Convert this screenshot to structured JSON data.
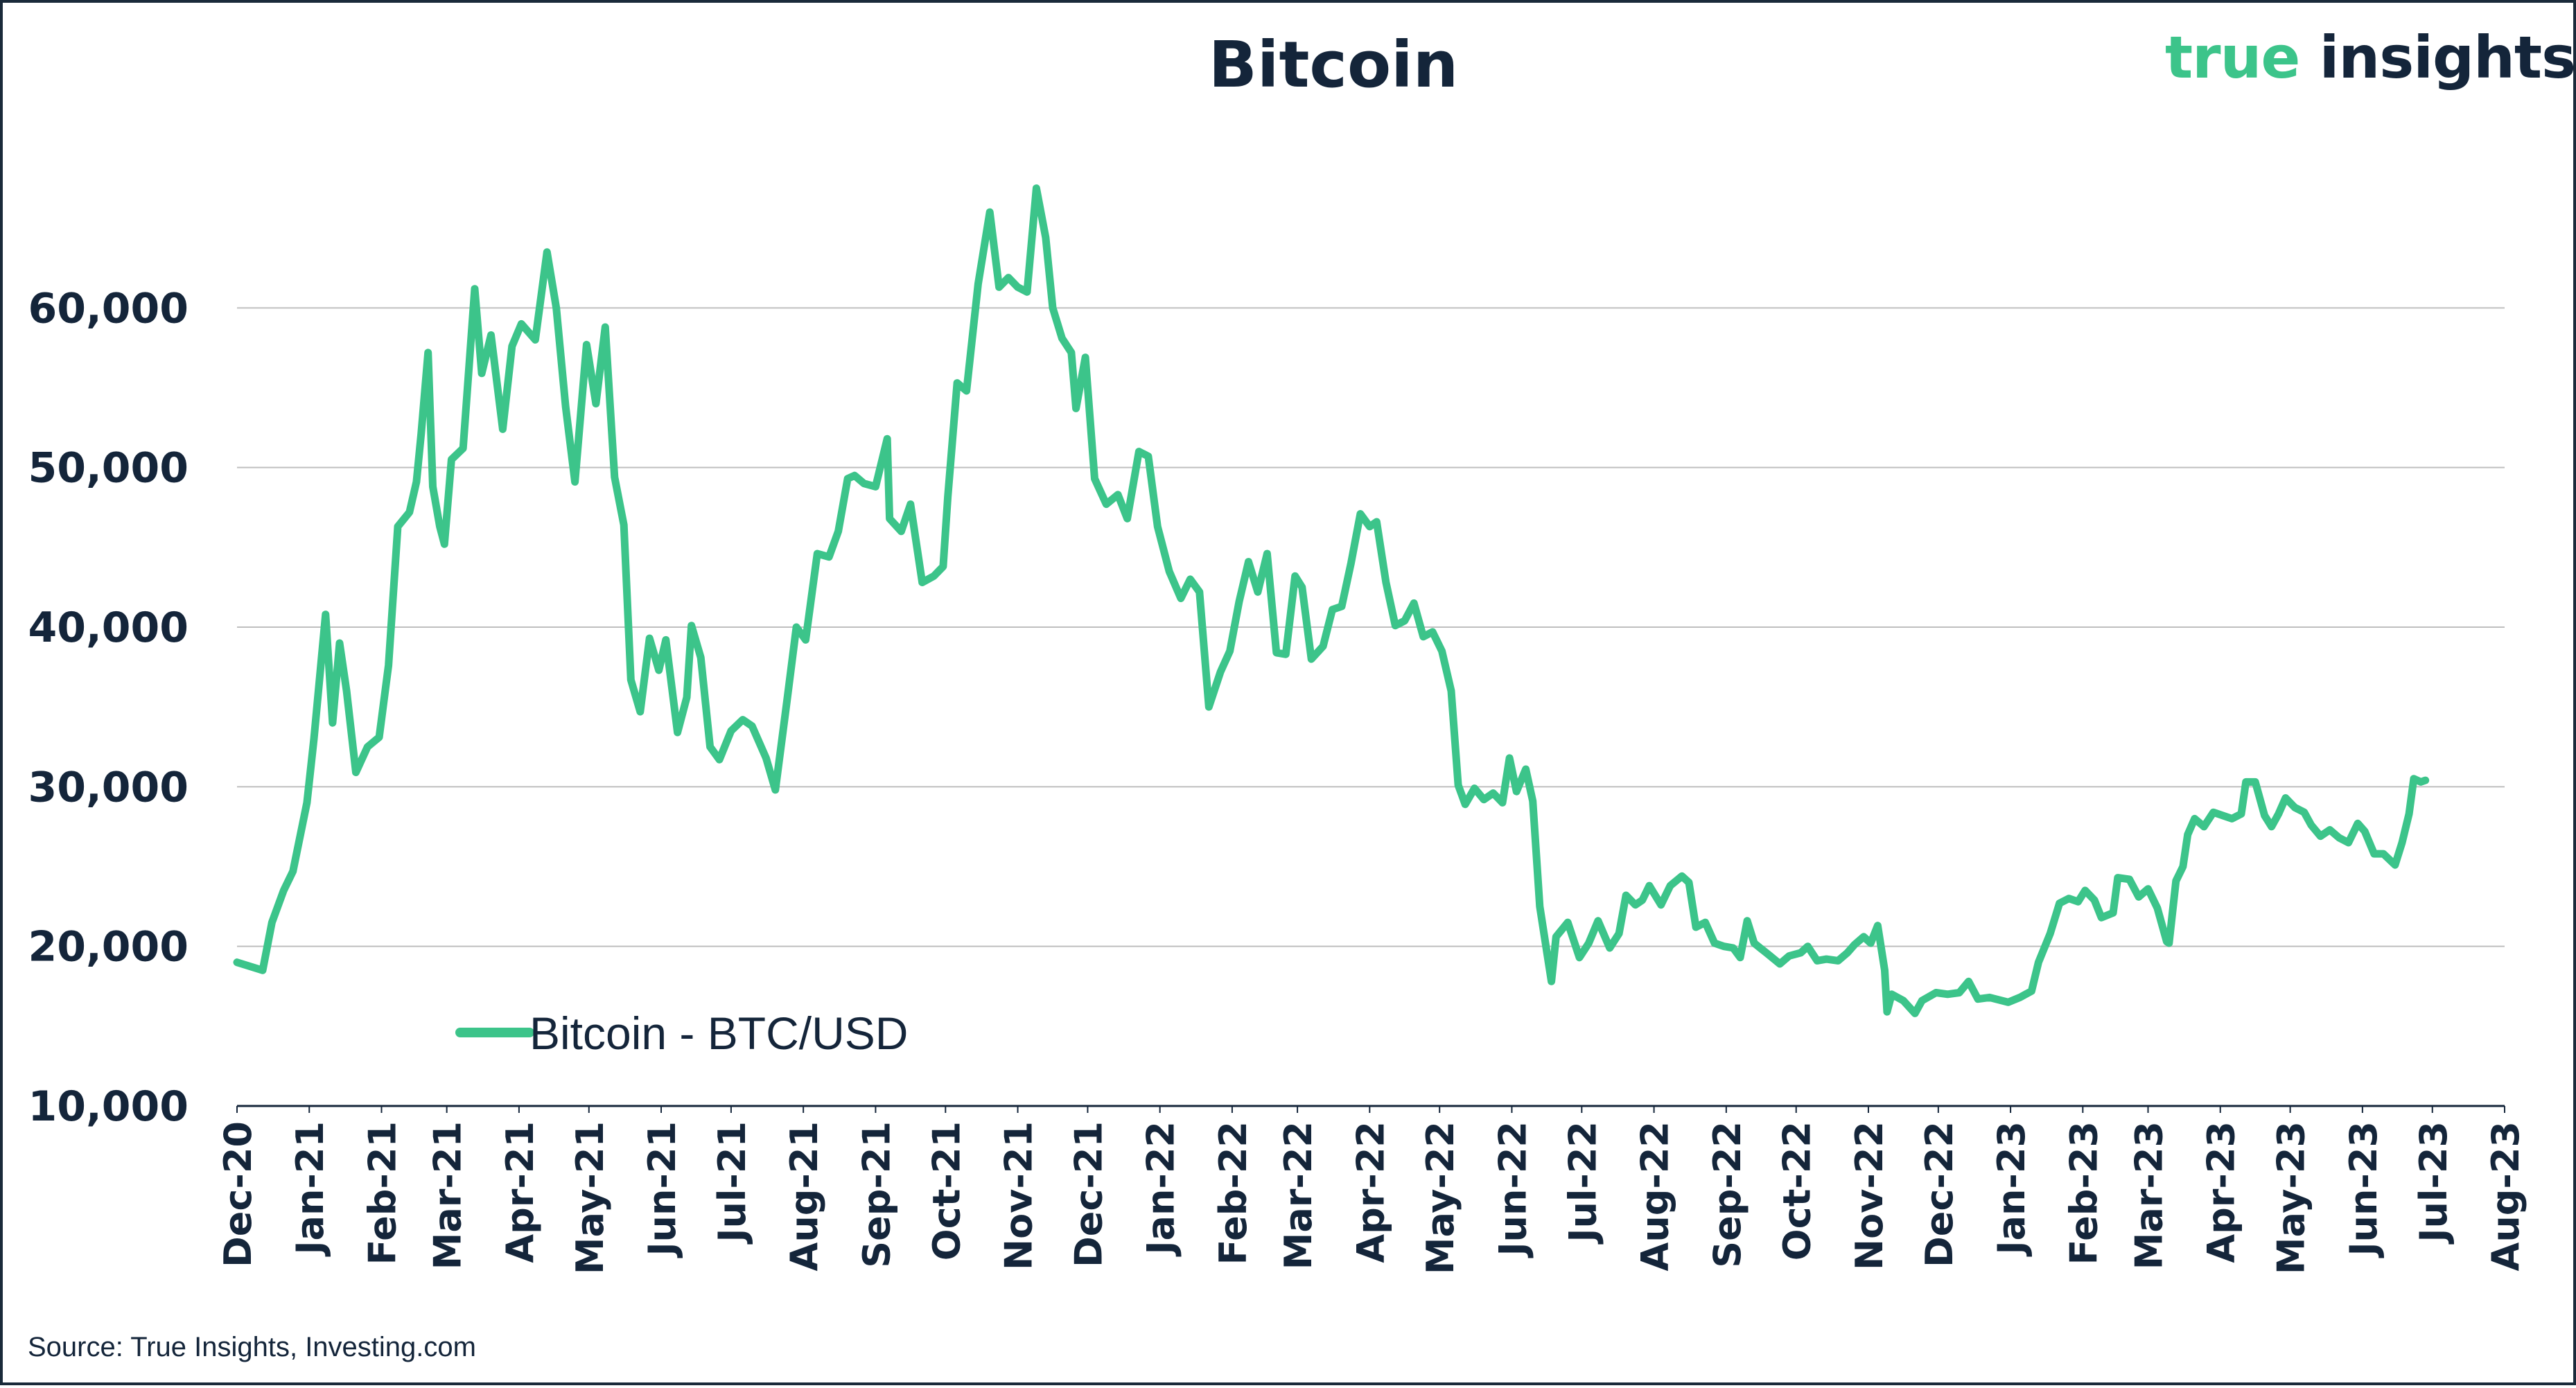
{
  "header": {
    "title": "Bitcoin",
    "brand_part1": "true",
    "brand_part2": "insights"
  },
  "footer": {
    "source": "Source: True Insights, Investing.com"
  },
  "colors": {
    "series": "#3cc48a",
    "text": "#14253a",
    "grid": "#bfbfbf",
    "axis": "#14253a"
  },
  "chart_data": {
    "type": "line",
    "title": "Bitcoin",
    "xlabel": "",
    "ylabel": "",
    "ylim": [
      10000,
      70000
    ],
    "yticks": [
      10000,
      20000,
      30000,
      40000,
      50000,
      60000
    ],
    "ytick_labels": [
      "10,000",
      "20,000",
      "30,000",
      "40,000",
      "50,000",
      "60,000"
    ],
    "x_range": [
      "2020-12-01",
      "2023-08-01"
    ],
    "xtick_labels": [
      "Dec-20",
      "Jan-21",
      "Feb-21",
      "Mar-21",
      "Apr-21",
      "May-21",
      "Jun-21",
      "Jul-21",
      "Aug-21",
      "Sep-21",
      "Oct-21",
      "Nov-21",
      "Dec-21",
      "Jan-22",
      "Feb-22",
      "Mar-22",
      "Apr-22",
      "May-22",
      "Jun-22",
      "Jul-22",
      "Aug-22",
      "Sep-22",
      "Oct-22",
      "Nov-22",
      "Dec-22",
      "Jan-23",
      "Feb-23",
      "Mar-23",
      "Apr-23",
      "May-23",
      "Jun-23",
      "Jul-23",
      "Aug-23"
    ],
    "grid": true,
    "legend_position": "bottom-left",
    "series": [
      {
        "name": "Bitcoin - BTC/USD",
        "points": [
          [
            "2020-12-01",
            19000
          ],
          [
            "2020-12-12",
            18500
          ],
          [
            "2020-12-16",
            21500
          ],
          [
            "2020-12-21",
            23500
          ],
          [
            "2020-12-25",
            24700
          ],
          [
            "2020-12-31",
            29000
          ],
          [
            "2021-01-03",
            33000
          ],
          [
            "2021-01-08",
            40800
          ],
          [
            "2021-01-11",
            34000
          ],
          [
            "2021-01-14",
            39000
          ],
          [
            "2021-01-17",
            36000
          ],
          [
            "2021-01-21",
            30900
          ],
          [
            "2021-01-26",
            32500
          ],
          [
            "2021-01-31",
            33100
          ],
          [
            "2021-02-04",
            37600
          ],
          [
            "2021-02-08",
            46300
          ],
          [
            "2021-02-13",
            47200
          ],
          [
            "2021-02-16",
            49100
          ],
          [
            "2021-02-18",
            52100
          ],
          [
            "2021-02-21",
            57200
          ],
          [
            "2021-02-23",
            48800
          ],
          [
            "2021-02-26",
            46300
          ],
          [
            "2021-02-28",
            45200
          ],
          [
            "2021-03-03",
            50500
          ],
          [
            "2021-03-08",
            51200
          ],
          [
            "2021-03-13",
            61200
          ],
          [
            "2021-03-16",
            55900
          ],
          [
            "2021-03-20",
            58300
          ],
          [
            "2021-03-25",
            52400
          ],
          [
            "2021-03-29",
            57600
          ],
          [
            "2021-04-02",
            59000
          ],
          [
            "2021-04-08",
            58000
          ],
          [
            "2021-04-13",
            63500
          ],
          [
            "2021-04-17",
            60000
          ],
          [
            "2021-04-21",
            53800
          ],
          [
            "2021-04-25",
            49100
          ],
          [
            "2021-04-30",
            57700
          ],
          [
            "2021-05-04",
            54000
          ],
          [
            "2021-05-08",
            58800
          ],
          [
            "2021-05-12",
            49400
          ],
          [
            "2021-05-16",
            46400
          ],
          [
            "2021-05-19",
            36700
          ],
          [
            "2021-05-23",
            34700
          ],
          [
            "2021-05-27",
            39300
          ],
          [
            "2021-05-31",
            37300
          ],
          [
            "2021-06-03",
            39200
          ],
          [
            "2021-06-08",
            33400
          ],
          [
            "2021-06-12",
            35600
          ],
          [
            "2021-06-14",
            40100
          ],
          [
            "2021-06-18",
            38100
          ],
          [
            "2021-06-22",
            32500
          ],
          [
            "2021-06-26",
            31700
          ],
          [
            "2021-07-01",
            33500
          ],
          [
            "2021-07-06",
            34200
          ],
          [
            "2021-07-10",
            33800
          ],
          [
            "2021-07-16",
            31800
          ],
          [
            "2021-07-20",
            29800
          ],
          [
            "2021-07-25",
            35400
          ],
          [
            "2021-07-29",
            40000
          ],
          [
            "2021-08-02",
            39200
          ],
          [
            "2021-08-07",
            44600
          ],
          [
            "2021-08-12",
            44400
          ],
          [
            "2021-08-16",
            46000
          ],
          [
            "2021-08-20",
            49300
          ],
          [
            "2021-08-23",
            49500
          ],
          [
            "2021-08-27",
            49000
          ],
          [
            "2021-09-01",
            48800
          ],
          [
            "2021-09-06",
            51800
          ],
          [
            "2021-09-07",
            46800
          ],
          [
            "2021-09-12",
            46000
          ],
          [
            "2021-09-16",
            47700
          ],
          [
            "2021-09-21",
            42800
          ],
          [
            "2021-09-26",
            43200
          ],
          [
            "2021-09-30",
            43800
          ],
          [
            "2021-10-02",
            48200
          ],
          [
            "2021-10-06",
            55300
          ],
          [
            "2021-10-10",
            54800
          ],
          [
            "2021-10-15",
            61500
          ],
          [
            "2021-10-20",
            66000
          ],
          [
            "2021-10-24",
            61300
          ],
          [
            "2021-10-28",
            61900
          ],
          [
            "2021-11-01",
            61300
          ],
          [
            "2021-11-05",
            61000
          ],
          [
            "2021-11-09",
            67500
          ],
          [
            "2021-11-13",
            64400
          ],
          [
            "2021-11-16",
            60000
          ],
          [
            "2021-11-20",
            58100
          ],
          [
            "2021-11-24",
            57200
          ],
          [
            "2021-11-26",
            53700
          ],
          [
            "2021-11-30",
            56900
          ],
          [
            "2021-12-04",
            49300
          ],
          [
            "2021-12-09",
            47700
          ],
          [
            "2021-12-14",
            48300
          ],
          [
            "2021-12-18",
            46800
          ],
          [
            "2021-12-23",
            51000
          ],
          [
            "2021-12-27",
            50700
          ],
          [
            "2021-12-31",
            46300
          ],
          [
            "2022-01-05",
            43500
          ],
          [
            "2022-01-10",
            41800
          ],
          [
            "2022-01-14",
            43000
          ],
          [
            "2022-01-18",
            42200
          ],
          [
            "2022-01-22",
            35000
          ],
          [
            "2022-01-27",
            37200
          ],
          [
            "2022-01-31",
            38500
          ],
          [
            "2022-02-04",
            41600
          ],
          [
            "2022-02-08",
            44100
          ],
          [
            "2022-02-12",
            42200
          ],
          [
            "2022-02-16",
            44600
          ],
          [
            "2022-02-20",
            38400
          ],
          [
            "2022-02-24",
            38300
          ],
          [
            "2022-02-28",
            43200
          ],
          [
            "2022-03-03",
            42500
          ],
          [
            "2022-03-07",
            38000
          ],
          [
            "2022-03-12",
            38800
          ],
          [
            "2022-03-16",
            41100
          ],
          [
            "2022-03-20",
            41300
          ],
          [
            "2022-03-24",
            44000
          ],
          [
            "2022-03-28",
            47100
          ],
          [
            "2022-04-01",
            46300
          ],
          [
            "2022-04-04",
            46600
          ],
          [
            "2022-04-08",
            42800
          ],
          [
            "2022-04-12",
            40100
          ],
          [
            "2022-04-16",
            40400
          ],
          [
            "2022-04-20",
            41500
          ],
          [
            "2022-04-24",
            39400
          ],
          [
            "2022-04-28",
            39700
          ],
          [
            "2022-05-02",
            38500
          ],
          [
            "2022-05-06",
            36000
          ],
          [
            "2022-05-09",
            30100
          ],
          [
            "2022-05-12",
            28900
          ],
          [
            "2022-05-16",
            29900
          ],
          [
            "2022-05-20",
            29200
          ],
          [
            "2022-05-24",
            29600
          ],
          [
            "2022-05-28",
            29000
          ],
          [
            "2022-05-31",
            31800
          ],
          [
            "2022-06-03",
            29700
          ],
          [
            "2022-06-07",
            31100
          ],
          [
            "2022-06-10",
            29100
          ],
          [
            "2022-06-13",
            22500
          ],
          [
            "2022-06-18",
            17800
          ],
          [
            "2022-06-20",
            20600
          ],
          [
            "2022-06-25",
            21500
          ],
          [
            "2022-06-30",
            19300
          ],
          [
            "2022-07-04",
            20200
          ],
          [
            "2022-07-08",
            21600
          ],
          [
            "2022-07-13",
            19900
          ],
          [
            "2022-07-17",
            20800
          ],
          [
            "2022-07-20",
            23200
          ],
          [
            "2022-07-24",
            22600
          ],
          [
            "2022-07-27",
            22900
          ],
          [
            "2022-07-30",
            23800
          ],
          [
            "2022-08-04",
            22600
          ],
          [
            "2022-08-08",
            23800
          ],
          [
            "2022-08-13",
            24400
          ],
          [
            "2022-08-16",
            24000
          ],
          [
            "2022-08-19",
            21200
          ],
          [
            "2022-08-23",
            21500
          ],
          [
            "2022-08-27",
            20200
          ],
          [
            "2022-08-31",
            20000
          ],
          [
            "2022-09-04",
            19900
          ],
          [
            "2022-09-07",
            19300
          ],
          [
            "2022-09-10",
            21600
          ],
          [
            "2022-09-13",
            20200
          ],
          [
            "2022-09-19",
            19500
          ],
          [
            "2022-09-24",
            18900
          ],
          [
            "2022-09-28",
            19400
          ],
          [
            "2022-10-03",
            19600
          ],
          [
            "2022-10-06",
            20000
          ],
          [
            "2022-10-10",
            19100
          ],
          [
            "2022-10-14",
            19200
          ],
          [
            "2022-10-19",
            19100
          ],
          [
            "2022-10-23",
            19600
          ],
          [
            "2022-10-26",
            20100
          ],
          [
            "2022-10-30",
            20600
          ],
          [
            "2022-11-02",
            20200
          ],
          [
            "2022-11-05",
            21300
          ],
          [
            "2022-11-08",
            18500
          ],
          [
            "2022-11-09",
            15900
          ],
          [
            "2022-11-11",
            17000
          ],
          [
            "2022-11-16",
            16600
          ],
          [
            "2022-11-21",
            15800
          ],
          [
            "2022-11-24",
            16600
          ],
          [
            "2022-11-30",
            17100
          ],
          [
            "2022-12-05",
            17000
          ],
          [
            "2022-12-10",
            17100
          ],
          [
            "2022-12-14",
            17800
          ],
          [
            "2022-12-18",
            16700
          ],
          [
            "2022-12-23",
            16800
          ],
          [
            "2022-12-31",
            16500
          ],
          [
            "2023-01-05",
            16800
          ],
          [
            "2023-01-10",
            17200
          ],
          [
            "2023-01-13",
            19000
          ],
          [
            "2023-01-18",
            20800
          ],
          [
            "2023-01-22",
            22700
          ],
          [
            "2023-01-26",
            23000
          ],
          [
            "2023-01-30",
            22800
          ],
          [
            "2023-02-02",
            23500
          ],
          [
            "2023-02-06",
            22900
          ],
          [
            "2023-02-09",
            21800
          ],
          [
            "2023-02-14",
            22100
          ],
          [
            "2023-02-16",
            24300
          ],
          [
            "2023-02-21",
            24200
          ],
          [
            "2023-02-25",
            23100
          ],
          [
            "2023-03-01",
            23600
          ],
          [
            "2023-03-05",
            22400
          ],
          [
            "2023-03-09",
            20300
          ],
          [
            "2023-03-10",
            20200
          ],
          [
            "2023-03-13",
            24100
          ],
          [
            "2023-03-16",
            25000
          ],
          [
            "2023-03-18",
            27000
          ],
          [
            "2023-03-21",
            28000
          ],
          [
            "2023-03-25",
            27500
          ],
          [
            "2023-03-29",
            28400
          ],
          [
            "2023-04-02",
            28200
          ],
          [
            "2023-04-06",
            28000
          ],
          [
            "2023-04-10",
            28300
          ],
          [
            "2023-04-12",
            30300
          ],
          [
            "2023-04-16",
            30300
          ],
          [
            "2023-04-20",
            28200
          ],
          [
            "2023-04-23",
            27500
          ],
          [
            "2023-04-26",
            28300
          ],
          [
            "2023-04-29",
            29300
          ],
          [
            "2023-05-03",
            28700
          ],
          [
            "2023-05-07",
            28400
          ],
          [
            "2023-05-10",
            27600
          ],
          [
            "2023-05-14",
            26900
          ],
          [
            "2023-05-18",
            27300
          ],
          [
            "2023-05-22",
            26800
          ],
          [
            "2023-05-26",
            26500
          ],
          [
            "2023-05-30",
            27700
          ],
          [
            "2023-06-02",
            27200
          ],
          [
            "2023-06-06",
            25800
          ],
          [
            "2023-06-10",
            25800
          ],
          [
            "2023-06-15",
            25100
          ],
          [
            "2023-06-18",
            26500
          ],
          [
            "2023-06-21",
            28300
          ],
          [
            "2023-06-23",
            30500
          ],
          [
            "2023-06-26",
            30300
          ],
          [
            "2023-06-28",
            30400
          ]
        ]
      }
    ]
  }
}
